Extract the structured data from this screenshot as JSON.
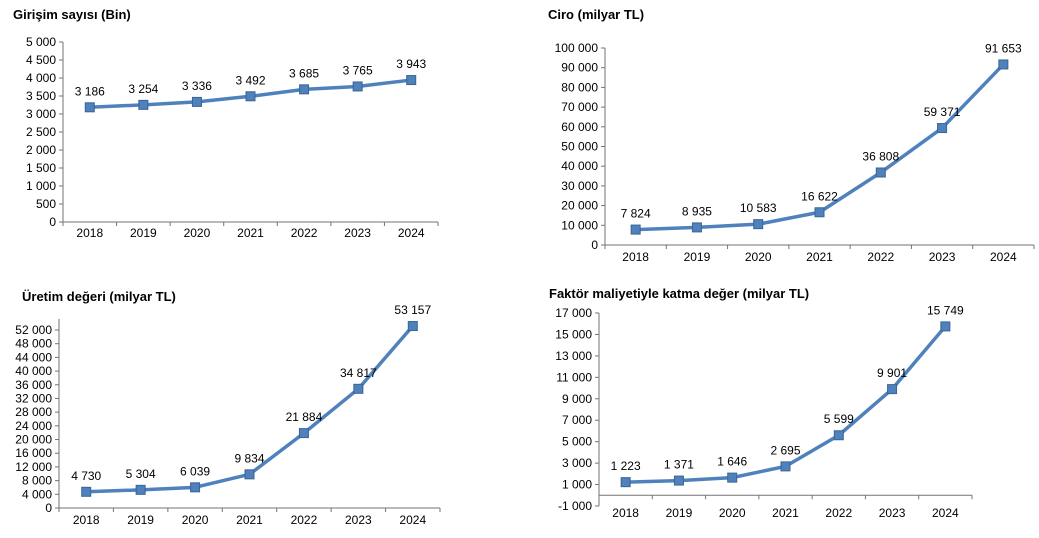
{
  "page": {
    "background": "#ffffff"
  },
  "colors": {
    "series_line": "#4F81BD",
    "marker_fill": "#4F81BD",
    "marker_border": "#3A6493",
    "axis": "#737373",
    "text": "#000000"
  },
  "chart_data": [
    {
      "type": "line",
      "title": "Girişim sayısı (Bin)",
      "categories": [
        "2018",
        "2019",
        "2020",
        "2021",
        "2022",
        "2023",
        "2024"
      ],
      "values": [
        3186,
        3254,
        3336,
        3492,
        3685,
        3765,
        3943
      ],
      "value_labels": [
        "3 186",
        "3 254",
        "3 336",
        "3 492",
        "3 685",
        "3 765",
        "3 943"
      ],
      "ylim": [
        0,
        5000
      ],
      "ytick_step": 500,
      "yticks": [
        0,
        500,
        1000,
        1500,
        2000,
        2500,
        3000,
        3500,
        4000,
        4500,
        5000
      ],
      "ytick_labels": [
        "0",
        "500",
        "1 000",
        "1 500",
        "2 000",
        "2 500",
        "3 000",
        "3 500",
        "4 000",
        "4 500",
        "5 000"
      ],
      "grid": false,
      "legend": "none",
      "marker": "square"
    },
    {
      "type": "line",
      "title": "Ciro (milyar TL)",
      "categories": [
        "2018",
        "2019",
        "2020",
        "2021",
        "2022",
        "2023",
        "2024"
      ],
      "values": [
        7824,
        8935,
        10583,
        16622,
        36808,
        59371,
        91653
      ],
      "value_labels": [
        "7 824",
        "8 935",
        "10 583",
        "16 622",
        "36 808",
        "59 371",
        "91 653"
      ],
      "ylim": [
        0,
        100000
      ],
      "ytick_step": 10000,
      "yticks": [
        0,
        10000,
        20000,
        30000,
        40000,
        50000,
        60000,
        70000,
        80000,
        90000,
        100000
      ],
      "ytick_labels": [
        "0",
        "10 000",
        "20 000",
        "30 000",
        "40 000",
        "50 000",
        "60 000",
        "70 000",
        "80 000",
        "90 000",
        "100 000"
      ],
      "grid": false,
      "legend": "none",
      "marker": "square"
    },
    {
      "type": "line",
      "title": "Üretim değeri (milyar TL)",
      "categories": [
        "2018",
        "2019",
        "2020",
        "2021",
        "2022",
        "2023",
        "2024"
      ],
      "values": [
        4730,
        5304,
        6039,
        9834,
        21884,
        34817,
        53157
      ],
      "value_labels": [
        "4 730",
        "5 304",
        "6 039",
        "9 834",
        "21 884",
        "34 817",
        "53 157"
      ],
      "ylim": [
        0,
        55200
      ],
      "ytick_step": 4000,
      "yticks": [
        0,
        4000,
        8000,
        12000,
        16000,
        20000,
        24000,
        28000,
        32000,
        36000,
        40000,
        44000,
        48000,
        52000
      ],
      "ytick_labels": [
        "0",
        "4 000",
        "8 000",
        "12 000",
        "16 000",
        "20 000",
        "24 000",
        "28 000",
        "32 000",
        "36 000",
        "40 000",
        "44 000",
        "48 000",
        "52 000"
      ],
      "grid": false,
      "legend": "none",
      "marker": "square"
    },
    {
      "type": "line",
      "title": "Faktör maliyetiyle katma değer (milyar TL)",
      "categories": [
        "2018",
        "2019",
        "2020",
        "2021",
        "2022",
        "2023",
        "2024"
      ],
      "values": [
        1223,
        1371,
        1646,
        2695,
        5599,
        9901,
        15749
      ],
      "value_labels": [
        "1 223",
        "1 371",
        "1 646",
        "2 695",
        "5 599",
        "9 901",
        "15 749"
      ],
      "ylim": [
        -1000,
        17000
      ],
      "ytick_step": 2000,
      "axis_cross": 0,
      "yticks": [
        -1000,
        1000,
        3000,
        5000,
        7000,
        9000,
        11000,
        13000,
        15000,
        17000
      ],
      "ytick_labels": [
        "-1 000",
        "1 000",
        "3 000",
        "5 000",
        "7 000",
        "9 000",
        "11 000",
        "13 000",
        "15 000",
        "17 000"
      ],
      "grid": false,
      "legend": "none",
      "marker": "square"
    }
  ]
}
